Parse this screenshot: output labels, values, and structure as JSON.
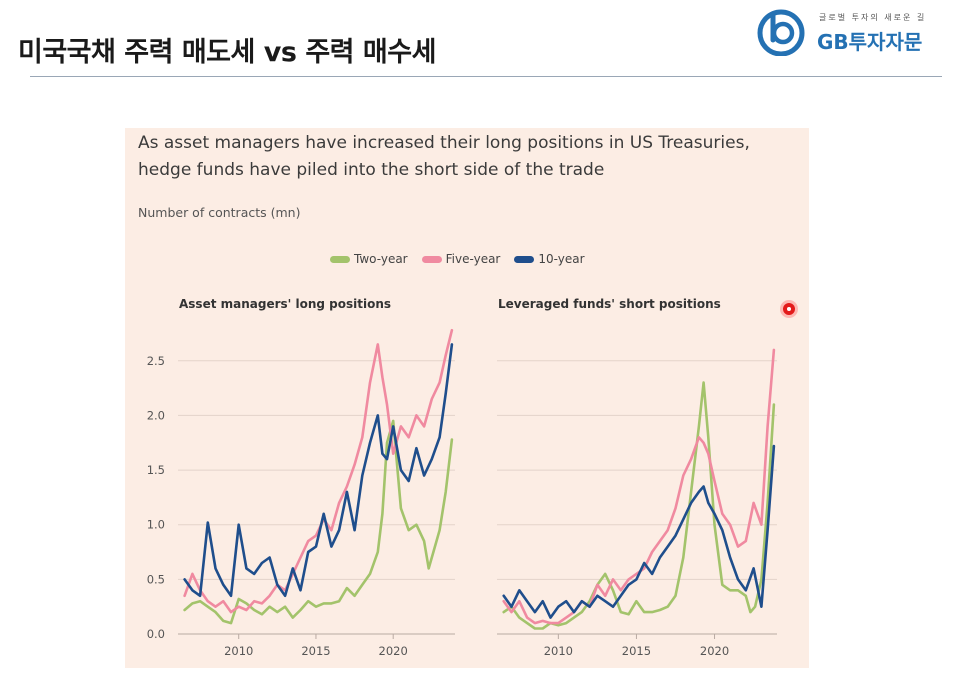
{
  "slide": {
    "title": "미국국채 주력 매도세 vs  주력 매수세"
  },
  "logo": {
    "tagline": "글로벌 투자의 새로운 길",
    "name": "GB투자자문",
    "color": "#2471b3"
  },
  "figure": {
    "title_line1": "As asset managers have increased their long positions in US Treasuries,",
    "title_line2": "hedge funds have piled into the short side of the trade",
    "subtitle": "Number of contracts (mn)",
    "background": "#fcede4"
  },
  "chart_data": [
    {
      "type": "line",
      "title": "Asset managers' long positions",
      "xlabel": "",
      "ylabel": "Number of contracts (mn)",
      "xlim": [
        2006.2,
        2024.0
      ],
      "ylim": [
        0,
        2.8
      ],
      "x_ticks": [
        2010,
        2015,
        2020
      ],
      "y_ticks": [
        0.0,
        0.5,
        1.0,
        1.5,
        2.0,
        2.5
      ],
      "y_tick_labels": [
        "0.0",
        "0.5",
        "1.0",
        "1.5",
        "2.0",
        "2.5"
      ],
      "grid": true,
      "series": [
        {
          "name": "Two-year",
          "color": "#a3c36b",
          "x": [
            2006.5,
            2007.0,
            2007.5,
            2008.0,
            2008.5,
            2009.0,
            2009.5,
            2010.0,
            2010.5,
            2011.0,
            2011.5,
            2012.0,
            2012.5,
            2013.0,
            2013.5,
            2014.0,
            2014.5,
            2015.0,
            2015.5,
            2016.0,
            2016.5,
            2017.0,
            2017.5,
            2018.0,
            2018.5,
            2019.0,
            2019.3,
            2019.6,
            2020.0,
            2020.5,
            2021.0,
            2021.5,
            2022.0,
            2022.3,
            2022.6,
            2023.0,
            2023.4,
            2023.8
          ],
          "values": [
            0.22,
            0.28,
            0.3,
            0.25,
            0.2,
            0.12,
            0.1,
            0.32,
            0.28,
            0.22,
            0.18,
            0.25,
            0.2,
            0.25,
            0.15,
            0.22,
            0.3,
            0.25,
            0.28,
            0.28,
            0.3,
            0.42,
            0.35,
            0.45,
            0.55,
            0.75,
            1.1,
            1.75,
            1.95,
            1.15,
            0.95,
            1.0,
            0.85,
            0.6,
            0.75,
            0.95,
            1.3,
            1.78
          ]
        },
        {
          "name": "Five-year",
          "color": "#f08aa0",
          "x": [
            2006.5,
            2007.0,
            2007.5,
            2008.0,
            2008.5,
            2009.0,
            2009.5,
            2010.0,
            2010.5,
            2011.0,
            2011.5,
            2012.0,
            2012.5,
            2013.0,
            2013.5,
            2014.0,
            2014.5,
            2015.0,
            2015.5,
            2016.0,
            2016.5,
            2017.0,
            2017.5,
            2018.0,
            2018.5,
            2019.0,
            2019.3,
            2019.6,
            2020.0,
            2020.5,
            2021.0,
            2021.5,
            2022.0,
            2022.5,
            2023.0,
            2023.4,
            2023.8
          ],
          "values": [
            0.35,
            0.55,
            0.4,
            0.3,
            0.25,
            0.3,
            0.2,
            0.25,
            0.22,
            0.3,
            0.28,
            0.35,
            0.45,
            0.4,
            0.55,
            0.7,
            0.85,
            0.9,
            1.05,
            0.95,
            1.2,
            1.35,
            1.55,
            1.8,
            2.3,
            2.65,
            2.35,
            2.1,
            1.65,
            1.9,
            1.8,
            2.0,
            1.9,
            2.15,
            2.3,
            2.55,
            2.78
          ]
        },
        {
          "name": "10-year",
          "color": "#1f4e8c",
          "x": [
            2006.5,
            2007.0,
            2007.5,
            2008.0,
            2008.5,
            2009.0,
            2009.5,
            2010.0,
            2010.5,
            2011.0,
            2011.5,
            2012.0,
            2012.5,
            2013.0,
            2013.5,
            2014.0,
            2014.5,
            2015.0,
            2015.5,
            2016.0,
            2016.5,
            2017.0,
            2017.5,
            2018.0,
            2018.5,
            2019.0,
            2019.3,
            2019.6,
            2020.0,
            2020.5,
            2021.0,
            2021.5,
            2022.0,
            2022.5,
            2023.0,
            2023.4,
            2023.8
          ],
          "values": [
            0.5,
            0.4,
            0.35,
            1.02,
            0.6,
            0.45,
            0.35,
            1.0,
            0.6,
            0.55,
            0.65,
            0.7,
            0.45,
            0.35,
            0.6,
            0.4,
            0.75,
            0.8,
            1.1,
            0.8,
            0.95,
            1.3,
            0.95,
            1.45,
            1.75,
            2.0,
            1.65,
            1.6,
            1.9,
            1.5,
            1.4,
            1.7,
            1.45,
            1.6,
            1.8,
            2.2,
            2.65
          ]
        }
      ]
    },
    {
      "type": "line",
      "title": "Leveraged funds' short positions",
      "xlabel": "",
      "ylabel": "Number of contracts (mn)",
      "xlim": [
        2006.2,
        2024.0
      ],
      "ylim": [
        0,
        2.8
      ],
      "x_ticks": [
        2010,
        2015,
        2020
      ],
      "grid": true,
      "series": [
        {
          "name": "Two-year",
          "color": "#a3c36b",
          "x": [
            2006.5,
            2007.0,
            2007.5,
            2008.0,
            2008.5,
            2009.0,
            2009.5,
            2010.0,
            2010.5,
            2011.0,
            2011.5,
            2012.0,
            2012.5,
            2013.0,
            2013.5,
            2014.0,
            2014.5,
            2015.0,
            2015.5,
            2016.0,
            2016.5,
            2017.0,
            2017.5,
            2018.0,
            2018.5,
            2019.0,
            2019.3,
            2019.6,
            2020.0,
            2020.5,
            2021.0,
            2021.5,
            2022.0,
            2022.3,
            2022.6,
            2023.0,
            2023.4,
            2023.8
          ],
          "values": [
            0.2,
            0.25,
            0.15,
            0.1,
            0.05,
            0.05,
            0.1,
            0.08,
            0.1,
            0.15,
            0.2,
            0.3,
            0.45,
            0.55,
            0.4,
            0.2,
            0.18,
            0.3,
            0.2,
            0.2,
            0.22,
            0.25,
            0.35,
            0.7,
            1.3,
            1.9,
            2.3,
            1.8,
            1.0,
            0.45,
            0.4,
            0.4,
            0.35,
            0.2,
            0.25,
            0.5,
            1.2,
            2.1
          ]
        },
        {
          "name": "Five-year",
          "color": "#f08aa0",
          "x": [
            2006.5,
            2007.0,
            2007.5,
            2008.0,
            2008.5,
            2009.0,
            2009.5,
            2010.0,
            2010.5,
            2011.0,
            2011.5,
            2012.0,
            2012.5,
            2013.0,
            2013.5,
            2014.0,
            2014.5,
            2015.0,
            2015.5,
            2016.0,
            2016.5,
            2017.0,
            2017.5,
            2018.0,
            2018.5,
            2019.0,
            2019.3,
            2019.6,
            2020.0,
            2020.5,
            2021.0,
            2021.5,
            2022.0,
            2022.5,
            2023.0,
            2023.4,
            2023.8
          ],
          "values": [
            0.3,
            0.2,
            0.3,
            0.15,
            0.1,
            0.12,
            0.1,
            0.1,
            0.15,
            0.2,
            0.3,
            0.25,
            0.45,
            0.35,
            0.5,
            0.4,
            0.5,
            0.55,
            0.6,
            0.75,
            0.85,
            0.95,
            1.15,
            1.45,
            1.6,
            1.8,
            1.75,
            1.65,
            1.4,
            1.1,
            1.0,
            0.8,
            0.85,
            1.2,
            1.0,
            1.9,
            2.6
          ]
        },
        {
          "name": "10-year",
          "color": "#1f4e8c",
          "x": [
            2006.5,
            2007.0,
            2007.5,
            2008.0,
            2008.5,
            2009.0,
            2009.5,
            2010.0,
            2010.5,
            2011.0,
            2011.5,
            2012.0,
            2012.5,
            2013.0,
            2013.5,
            2014.0,
            2014.5,
            2015.0,
            2015.5,
            2016.0,
            2016.5,
            2017.0,
            2017.5,
            2018.0,
            2018.5,
            2019.0,
            2019.3,
            2019.6,
            2020.0,
            2020.5,
            2021.0,
            2021.5,
            2022.0,
            2022.5,
            2023.0,
            2023.4,
            2023.8
          ],
          "values": [
            0.35,
            0.25,
            0.4,
            0.3,
            0.2,
            0.3,
            0.15,
            0.25,
            0.3,
            0.2,
            0.3,
            0.25,
            0.35,
            0.3,
            0.25,
            0.35,
            0.45,
            0.5,
            0.65,
            0.55,
            0.7,
            0.8,
            0.9,
            1.05,
            1.2,
            1.3,
            1.35,
            1.2,
            1.1,
            0.95,
            0.7,
            0.5,
            0.4,
            0.6,
            0.25,
            0.95,
            1.72
          ]
        }
      ]
    }
  ]
}
